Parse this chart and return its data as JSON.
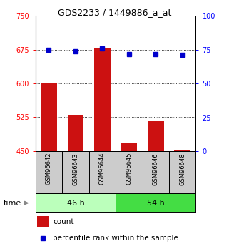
{
  "title": "GDS2233 / 1449886_a_at",
  "samples": [
    "GSM96642",
    "GSM96643",
    "GSM96644",
    "GSM96645",
    "GSM96646",
    "GSM96648"
  ],
  "bar_values": [
    601,
    530,
    679,
    468,
    516,
    452
  ],
  "bar_base": 449,
  "percentile_values": [
    75,
    74,
    76,
    72,
    72,
    71
  ],
  "left_ylim": [
    449,
    750
  ],
  "right_ylim": [
    0,
    100
  ],
  "left_yticks": [
    450,
    525,
    600,
    675,
    750
  ],
  "right_yticks": [
    0,
    25,
    50,
    75,
    100
  ],
  "bar_color": "#cc1111",
  "dot_color": "#0000cc",
  "group46_color": "#bbffbb",
  "group54_color": "#44dd44",
  "sample_bg": "#cccccc",
  "group46_label": "46 h",
  "group54_label": "54 h",
  "time_label": "time",
  "legend_count": "count",
  "legend_pct": "percentile rank within the sample"
}
